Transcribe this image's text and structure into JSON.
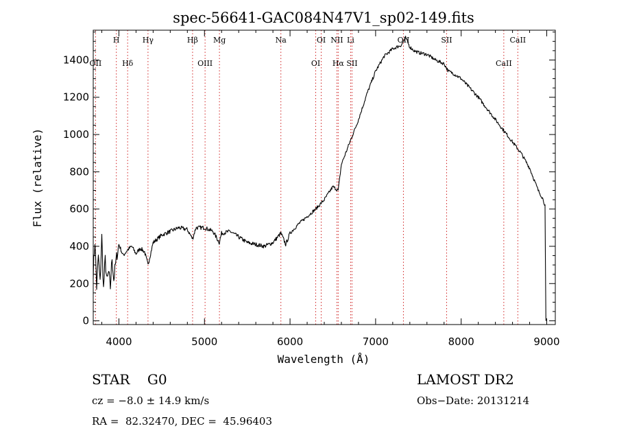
{
  "chart_data": {
    "type": "line",
    "title": "spec-56641-GAC084N47V1_sp02-149.fits",
    "xlabel": "Wavelength (Å)",
    "ylabel": "Flux (relative)",
    "xlim": [
      3700,
      9100
    ],
    "ylim": [
      -20,
      1560
    ],
    "xticks": [
      4000,
      5000,
      6000,
      7000,
      8000,
      9000
    ],
    "yticks": [
      0,
      200,
      400,
      600,
      800,
      1000,
      1200,
      1400
    ],
    "grid": false,
    "series": [
      {
        "color": "#000000",
        "x": [
          3700,
          3720,
          3740,
          3760,
          3780,
          3800,
          3820,
          3840,
          3860,
          3880,
          3900,
          3920,
          3940,
          3960,
          3980,
          4000,
          4050,
          4100,
          4150,
          4200,
          4250,
          4300,
          4340,
          4400,
          4500,
          4600,
          4700,
          4800,
          4861,
          4900,
          5000,
          5100,
          5173,
          5200,
          5300,
          5400,
          5500,
          5600,
          5700,
          5800,
          5893,
          5950,
          6000,
          6100,
          6200,
          6300,
          6400,
          6500,
          6563,
          6600,
          6700,
          6800,
          6900,
          7000,
          7100,
          7200,
          7300,
          7350,
          7400,
          7450,
          7500,
          7600,
          7700,
          7800,
          7850,
          7900,
          8000,
          8100,
          8200,
          8300,
          8400,
          8500,
          8600,
          8700,
          8800,
          8850,
          8900,
          8950,
          8980,
          8990
        ],
        "y": [
          260,
          430,
          180,
          350,
          200,
          450,
          170,
          330,
          210,
          260,
          180,
          340,
          220,
          300,
          360,
          410,
          350,
          380,
          400,
          360,
          390,
          370,
          300,
          420,
          460,
          480,
          500,
          490,
          440,
          500,
          500,
          480,
          420,
          470,
          480,
          450,
          420,
          410,
          400,
          420,
          470,
          410,
          470,
          520,
          560,
          600,
          650,
          720,
          700,
          840,
          960,
          1080,
          1220,
          1340,
          1420,
          1460,
          1480,
          1520,
          1470,
          1450,
          1440,
          1430,
          1400,
          1380,
          1340,
          1330,
          1300,
          1250,
          1200,
          1140,
          1080,
          1020,
          960,
          900,
          820,
          760,
          700,
          660,
          620,
          0
        ]
      }
    ],
    "lines": [
      {
        "label": "H",
        "x": 3970,
        "row": 0
      },
      {
        "label": "Hδ",
        "x": 4102,
        "row": 1
      },
      {
        "label": "Hγ",
        "x": 4340,
        "row": 0
      },
      {
        "label": "Hβ",
        "x": 4861,
        "row": 0
      },
      {
        "label": "OIII",
        "x": 5007,
        "row": 1
      },
      {
        "label": "Mg",
        "x": 5175,
        "row": 0
      },
      {
        "label": "Na",
        "x": 5893,
        "row": 0
      },
      {
        "label": "OI",
        "x": 6300,
        "row": 1
      },
      {
        "label": "OI",
        "x": 6364,
        "row": 0
      },
      {
        "label": "NII",
        "x": 6548,
        "row": 0
      },
      {
        "label": "Hα",
        "x": 6563,
        "row": 1
      },
      {
        "label": "Li",
        "x": 6708,
        "row": 0
      },
      {
        "label": "SII",
        "x": 6724,
        "row": 1
      },
      {
        "label": "OII",
        "x": 7325,
        "row": 0
      },
      {
        "label": "SII",
        "x": 7830,
        "row": 0
      },
      {
        "label": "CaII",
        "x": 8498,
        "row": 1
      },
      {
        "label": "CaII",
        "x": 8662,
        "row": 0
      },
      {
        "label": "OII",
        "x": 3727,
        "row": 1
      }
    ]
  },
  "info": {
    "class": "STAR    G0",
    "survey": "LAMOST DR2",
    "cz": "cz = −8.0 ± 14.9 km/s",
    "obsdate": "Obs−Date: 20131214",
    "radec": "RA =  82.32470, DEC =  45.96403"
  }
}
